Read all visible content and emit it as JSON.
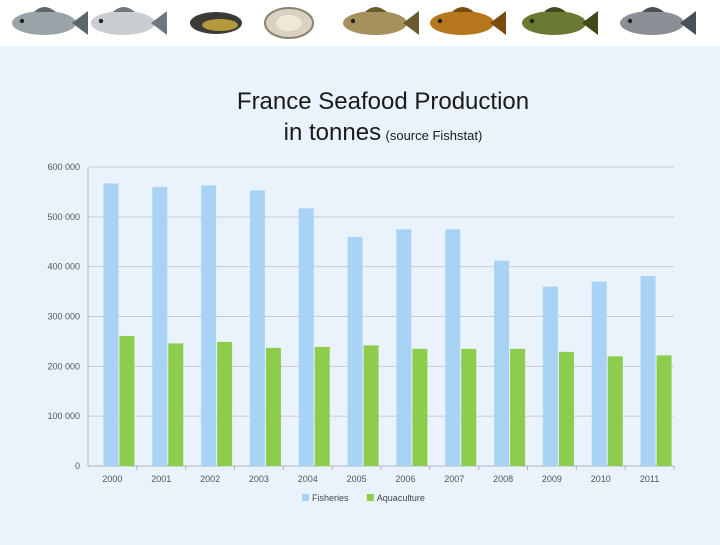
{
  "title_line1": "France Seafood Production",
  "title_line2": "in tonnes",
  "title_source": "(source Fishstat)",
  "banner_icons": [
    "sea-bream-icon",
    "sea-bass-icon",
    "mussel-icon",
    "oyster-icon",
    "trout-icon",
    "carp-icon",
    "tench-icon",
    "meagre-icon"
  ],
  "chart_data": {
    "type": "bar",
    "categories": [
      "2000",
      "2001",
      "2002",
      "2003",
      "2004",
      "2005",
      "2006",
      "2007",
      "2008",
      "2009",
      "2010",
      "2011"
    ],
    "series": [
      {
        "name": "Fisheries",
        "color": "#a9d3f5",
        "values": [
          567000,
          560000,
          563000,
          553000,
          517000,
          460000,
          475000,
          475000,
          412000,
          360000,
          370000,
          381000
        ]
      },
      {
        "name": "Aquaculture",
        "color": "#8ecc4d",
        "values": [
          261000,
          246000,
          249000,
          237000,
          239000,
          242000,
          235000,
          235000,
          235000,
          229000,
          220000,
          222000
        ]
      }
    ],
    "ylim": [
      0,
      600000
    ],
    "yticks": [
      0,
      100000,
      200000,
      300000,
      400000,
      500000,
      600000
    ],
    "ytick_labels": [
      "0",
      "100 000",
      "200 000",
      "300 000",
      "400 000",
      "500 000",
      "600 000"
    ],
    "grid": true,
    "legend_position": "bottom"
  }
}
